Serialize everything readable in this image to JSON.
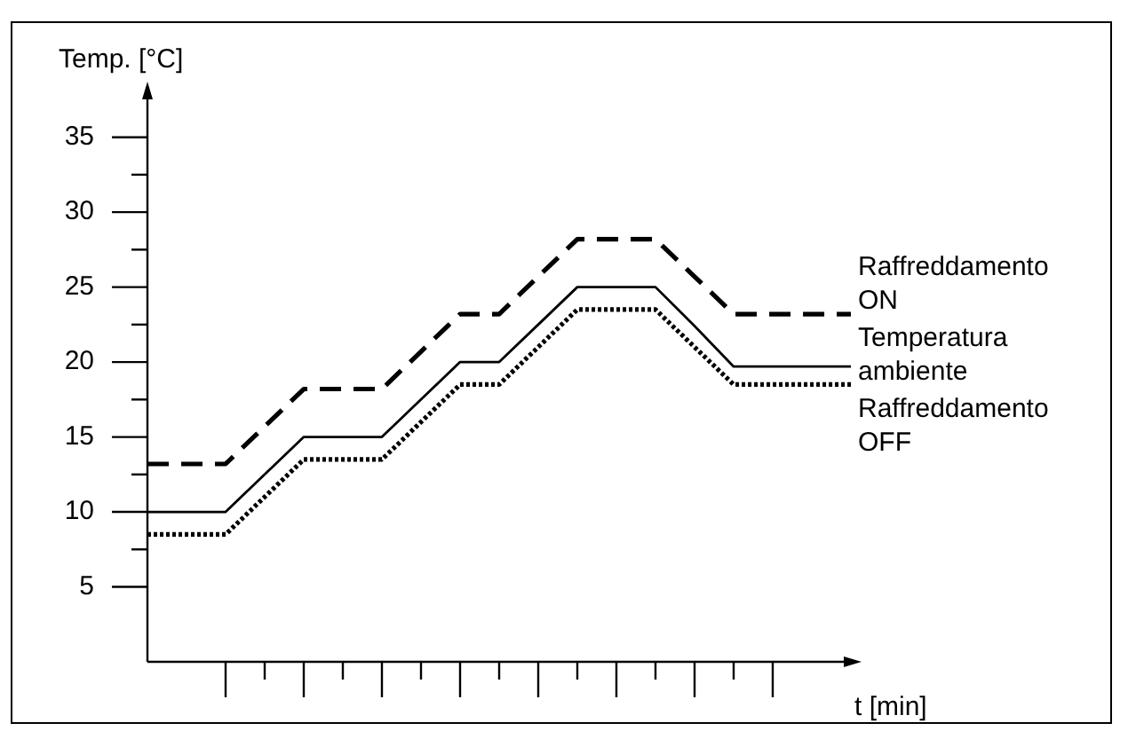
{
  "chart_data": {
    "type": "line",
    "ylabel": "Temp. [°C]",
    "xlabel": "t [min]",
    "categories": [
      null,
      null,
      null,
      null,
      null,
      null,
      null,
      null,
      null,
      null,
      null,
      null,
      null,
      null,
      null,
      null,
      null,
      null,
      null
    ],
    "ylim": [
      0,
      38
    ],
    "yticks": [
      5,
      {
        "value": 7.5,
        "label": null
      },
      10,
      {
        "value": 12.5,
        "label": null
      },
      15,
      {
        "value": 17.5,
        "label": null
      },
      20,
      {
        "value": 22.5,
        "label": null
      },
      25,
      {
        "value": 27.5,
        "label": null
      },
      30,
      {
        "value": 32.5,
        "label": null
      },
      35
    ],
    "grid": false,
    "legend": false,
    "marker": "none",
    "series": [
      {
        "name": "Raffreddamento ON",
        "color": "#000000",
        "line_style": "dashed",
        "values": [
          13.2,
          13.2,
          13.2,
          15.7,
          18.2,
          18.2,
          18.2,
          20.7,
          23.2,
          23.2,
          25.7,
          28.2,
          28.2,
          28.2,
          25.7,
          23.2,
          23.2,
          23.2,
          23.2
        ]
      },
      {
        "name": "Temperatura ambiente",
        "color": "#000000",
        "line_style": "solid",
        "values": [
          10,
          10,
          10,
          12.5,
          15,
          15,
          15,
          17.5,
          20,
          20,
          22.5,
          25,
          25,
          25,
          22.4,
          19.7,
          19.7,
          19.7,
          19.7
        ]
      },
      {
        "name": "Raffreddamento OFF",
        "color": "#000000",
        "line_style": "dotted",
        "values": [
          8.5,
          8.5,
          8.5,
          11,
          13.5,
          13.5,
          13.5,
          16,
          18.5,
          18.5,
          21,
          23.5,
          23.5,
          23.5,
          21,
          18.5,
          18.5,
          18.5,
          18.5
        ]
      }
    ]
  }
}
